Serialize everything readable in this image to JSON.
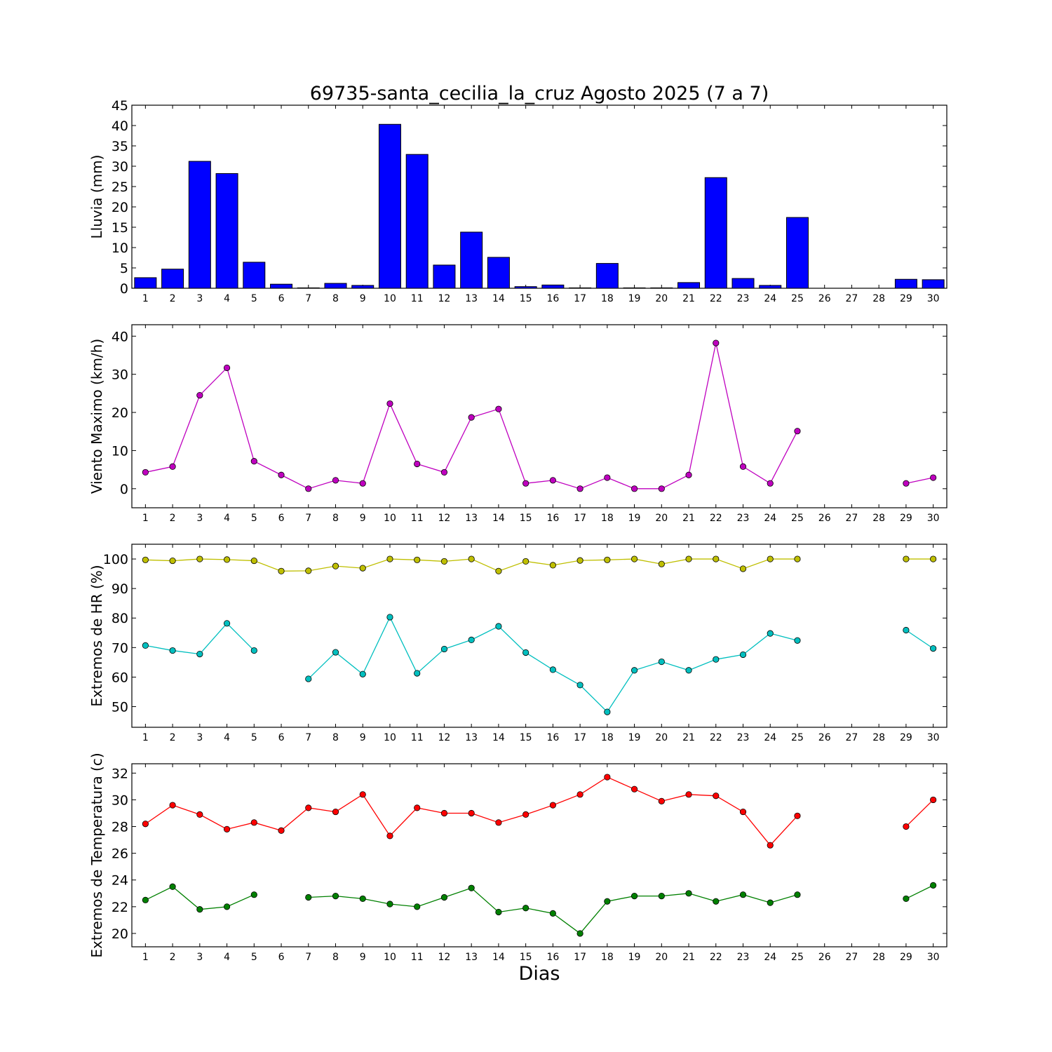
{
  "title": "69735-santa_cecilia_la_cruz Agosto 2025  (7 a 7)",
  "xlabel": "Dias",
  "chart_data": [
    {
      "type": "bar",
      "ylabel": "Lluvia (mm)",
      "ylim": [
        0,
        45
      ],
      "yticks": [
        0,
        5,
        10,
        15,
        20,
        25,
        30,
        35,
        40,
        45
      ],
      "categories": [
        1,
        2,
        3,
        4,
        5,
        6,
        7,
        8,
        9,
        10,
        11,
        12,
        13,
        14,
        15,
        16,
        17,
        18,
        19,
        20,
        21,
        22,
        23,
        24,
        25,
        26,
        27,
        28,
        29,
        30
      ],
      "series": [
        {
          "color": "#0000ff",
          "values": [
            2.6,
            4.7,
            31.2,
            28.2,
            6.4,
            1.0,
            0.1,
            1.2,
            0.7,
            40.3,
            32.9,
            5.7,
            13.8,
            7.6,
            0.4,
            0.8,
            0.1,
            6.1,
            0.1,
            0.1,
            1.4,
            27.2,
            2.4,
            0.7,
            17.4,
            0,
            0,
            0,
            2.2,
            2.1
          ]
        }
      ]
    },
    {
      "type": "line",
      "ylabel": "Viento Maximo (km/h)",
      "ylim": [
        -5,
        43
      ],
      "yticks": [
        0,
        10,
        20,
        30,
        40
      ],
      "categories": [
        1,
        2,
        3,
        4,
        5,
        6,
        7,
        8,
        9,
        10,
        11,
        12,
        13,
        14,
        15,
        16,
        17,
        18,
        19,
        20,
        21,
        22,
        23,
        24,
        25,
        26,
        27,
        28,
        29,
        30
      ],
      "series": [
        {
          "color": "#bf00bf",
          "values": [
            4.3,
            5.8,
            24.5,
            31.7,
            7.2,
            3.6,
            0,
            2.2,
            1.4,
            22.3,
            6.5,
            4.3,
            18.7,
            20.9,
            1.4,
            2.2,
            0,
            2.9,
            0,
            0,
            3.6,
            38.2,
            5.8,
            1.4,
            15.1,
            null,
            null,
            null,
            1.4,
            2.9
          ]
        }
      ]
    },
    {
      "type": "line",
      "ylabel": "Extremos de HR (%)",
      "ylim": [
        43,
        105
      ],
      "yticks": [
        50,
        60,
        70,
        80,
        90,
        100
      ],
      "categories": [
        1,
        2,
        3,
        4,
        5,
        6,
        7,
        8,
        9,
        10,
        11,
        12,
        13,
        14,
        15,
        16,
        17,
        18,
        19,
        20,
        21,
        22,
        23,
        24,
        25,
        26,
        27,
        28,
        29,
        30
      ],
      "series": [
        {
          "color": "#bfbf00",
          "values": [
            99.7,
            99.4,
            100,
            99.8,
            99.4,
            95.9,
            96,
            97.6,
            96.9,
            100,
            99.7,
            99.2,
            100,
            95.9,
            99.2,
            97.9,
            99.5,
            99.7,
            100,
            98.3,
            100,
            100,
            96.7,
            100,
            100,
            null,
            null,
            null,
            100,
            100
          ]
        },
        {
          "color": "#00bfbf",
          "values": [
            70.7,
            69,
            67.8,
            78.2,
            69,
            null,
            59.4,
            68.4,
            61,
            80.3,
            61.3,
            69.5,
            72.6,
            77.2,
            68.3,
            62.5,
            57.3,
            48.2,
            62.3,
            65.2,
            62.3,
            66,
            67.6,
            74.8,
            72.4,
            null,
            null,
            null,
            75.9,
            69.7
          ]
        }
      ]
    },
    {
      "type": "line",
      "ylabel": "Extremos de Temperatura (c)",
      "ylim": [
        19,
        32.7
      ],
      "yticks": [
        20,
        22,
        24,
        26,
        28,
        30,
        32
      ],
      "categories": [
        1,
        2,
        3,
        4,
        5,
        6,
        7,
        8,
        9,
        10,
        11,
        12,
        13,
        14,
        15,
        16,
        17,
        18,
        19,
        20,
        21,
        22,
        23,
        24,
        25,
        26,
        27,
        28,
        29,
        30
      ],
      "series": [
        {
          "color": "#ff0000",
          "values": [
            28.2,
            29.6,
            28.9,
            27.8,
            28.3,
            27.7,
            29.4,
            29.1,
            30.4,
            27.3,
            29.4,
            29,
            29,
            28.3,
            28.9,
            29.6,
            30.4,
            31.7,
            30.8,
            29.9,
            30.4,
            30.3,
            29.1,
            26.6,
            28.8,
            null,
            null,
            null,
            28,
            30
          ]
        },
        {
          "color": "#008000",
          "values": [
            22.5,
            23.5,
            21.8,
            22,
            22.9,
            null,
            22.7,
            22.8,
            22.6,
            22.2,
            22,
            22.7,
            23.4,
            21.6,
            21.9,
            21.5,
            20,
            22.4,
            22.8,
            22.8,
            23,
            22.4,
            22.9,
            22.3,
            22.9,
            null,
            null,
            null,
            22.6,
            23.6
          ]
        }
      ]
    }
  ]
}
